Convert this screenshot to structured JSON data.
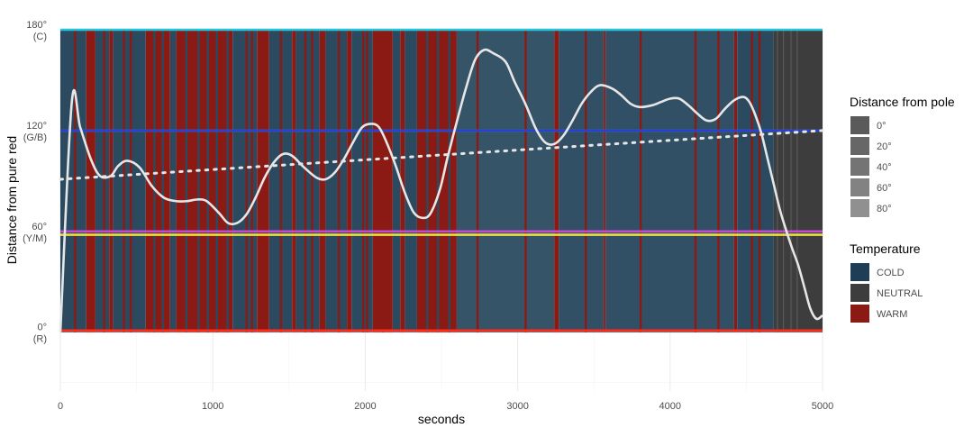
{
  "chart_data": {
    "type": "area",
    "xlabel": "seconds",
    "ylabel": "Distance from pure red",
    "xlim": [
      0,
      5000
    ],
    "ylim": [
      -35,
      180
    ],
    "grid": true,
    "x_ticks": [
      {
        "value": 0,
        "label": "0"
      },
      {
        "value": 1000,
        "label": "1000"
      },
      {
        "value": 2000,
        "label": "2000"
      },
      {
        "value": 3000,
        "label": "3000"
      },
      {
        "value": 4000,
        "label": "4000"
      },
      {
        "value": 5000,
        "label": "5000"
      }
    ],
    "y_ticks": [
      {
        "value": 0,
        "label": "0°",
        "sublabel": "(R)"
      },
      {
        "value": 60,
        "label": "60°",
        "sublabel": "(Y/M)"
      },
      {
        "value": 120,
        "label": "120°",
        "sublabel": "(G/B)"
      },
      {
        "value": 180,
        "label": "180°",
        "sublabel": "(C)"
      }
    ],
    "reference_lines": [
      {
        "y": 180,
        "color": "#26c6da"
      },
      {
        "y": 120,
        "color": "#2ecc40"
      },
      {
        "y": 120,
        "color": "#2b3fd6"
      },
      {
        "y": 60,
        "color": "#c04cd0"
      },
      {
        "y": 58,
        "color": "#e8e040"
      },
      {
        "y": 1,
        "color": "#ff2a1a"
      }
    ],
    "temperature_segments": [
      {
        "start": 0,
        "end": 170,
        "temp": "COLD"
      },
      {
        "start": 170,
        "end": 230,
        "temp": "WARM"
      },
      {
        "start": 230,
        "end": 320,
        "temp": "COLD"
      },
      {
        "start": 320,
        "end": 345,
        "temp": "WARM"
      },
      {
        "start": 345,
        "end": 560,
        "temp": "COLD"
      },
      {
        "start": 560,
        "end": 720,
        "temp": "WARM"
      },
      {
        "start": 720,
        "end": 760,
        "temp": "COLD"
      },
      {
        "start": 760,
        "end": 1130,
        "temp": "WARM"
      },
      {
        "start": 1130,
        "end": 1290,
        "temp": "COLD"
      },
      {
        "start": 1290,
        "end": 1370,
        "temp": "WARM"
      },
      {
        "start": 1370,
        "end": 1520,
        "temp": "COLD"
      },
      {
        "start": 1520,
        "end": 1545,
        "temp": "WARM"
      },
      {
        "start": 1545,
        "end": 1700,
        "temp": "COLD"
      },
      {
        "start": 1700,
        "end": 1740,
        "temp": "WARM"
      },
      {
        "start": 1740,
        "end": 1880,
        "temp": "COLD"
      },
      {
        "start": 1880,
        "end": 1910,
        "temp": "WARM"
      },
      {
        "start": 1910,
        "end": 2050,
        "temp": "COLD"
      },
      {
        "start": 2050,
        "end": 2180,
        "temp": "WARM"
      },
      {
        "start": 2180,
        "end": 2230,
        "temp": "COLD"
      },
      {
        "start": 2230,
        "end": 2260,
        "temp": "WARM"
      },
      {
        "start": 2260,
        "end": 2340,
        "temp": "COLD"
      },
      {
        "start": 2340,
        "end": 2600,
        "temp": "WARM"
      },
      {
        "start": 2600,
        "end": 3240,
        "temp": "COLD"
      },
      {
        "start": 3240,
        "end": 3270,
        "temp": "WARM"
      },
      {
        "start": 3270,
        "end": 3560,
        "temp": "COLD"
      },
      {
        "start": 3560,
        "end": 3580,
        "temp": "WARM"
      },
      {
        "start": 3580,
        "end": 4420,
        "temp": "COLD"
      },
      {
        "start": 4420,
        "end": 4440,
        "temp": "WARM"
      },
      {
        "start": 4440,
        "end": 4680,
        "temp": "COLD"
      },
      {
        "start": 4680,
        "end": 5000,
        "temp": "NEUTRAL"
      }
    ],
    "warm_stripes": [
      90,
      280,
      410,
      455,
      1215,
      1250,
      1440,
      1600,
      1645,
      1820,
      1980,
      2005,
      2110,
      2730,
      3045,
      3440,
      3800,
      4160,
      4310,
      4530,
      4580
    ],
    "cold_stripes": [
      610,
      665,
      820,
      900,
      960,
      1020,
      1090,
      2400,
      2470,
      2545
    ],
    "series": [
      {
        "type": "smooth",
        "color": "#e6e6e6",
        "x": [
          0,
          75,
          130,
          200,
          260,
          330,
          380,
          440,
          520,
          600,
          680,
          760,
          830,
          900,
          960,
          1040,
          1100,
          1160,
          1220,
          1280,
          1340,
          1400,
          1460,
          1520,
          1600,
          1680,
          1740,
          1800,
          1860,
          1920,
          1980,
          2040,
          2090,
          2140,
          2200,
          2260,
          2320,
          2380,
          2430,
          2490,
          2540,
          2600,
          2660,
          2720,
          2780,
          2840,
          2920,
          2980,
          3050,
          3120,
          3180,
          3240,
          3300,
          3360,
          3420,
          3480,
          3540,
          3620,
          3680,
          3740,
          3800,
          3880,
          3940,
          4000,
          4060,
          4120,
          4180,
          4240,
          4300,
          4360,
          4420,
          4480,
          4520,
          4560,
          4600,
          4640,
          4680,
          4720,
          4760,
          4800,
          4840,
          4880,
          4920,
          4960,
          5000
        ],
        "y": [
          0,
          137,
          122,
          103,
          93,
          93,
          99,
          102,
          98,
          87,
          80,
          78,
          78,
          79,
          78,
          71,
          65,
          65,
          70,
          80,
          92,
          101,
          106,
          105,
          98,
          92,
          91,
          95,
          103,
          113,
          122,
          124,
          122,
          113,
          99,
          83,
          71,
          68,
          71,
          85,
          104,
          125,
          145,
          162,
          168,
          166,
          161,
          149,
          136,
          121,
          113,
          112,
          117,
          126,
          136,
          143,
          147,
          145,
          141,
          136,
          134,
          135,
          137,
          139,
          139,
          135,
          130,
          126,
          127,
          133,
          138,
          140,
          137,
          129,
          118,
          103,
          88,
          73,
          61,
          50,
          40,
          27,
          14,
          8,
          10
        ]
      },
      {
        "type": "trend",
        "dashed": true,
        "color": "#e6e6e6",
        "x": [
          0,
          5000
        ],
        "y": [
          91,
          120
        ]
      }
    ],
    "legend": {
      "placement": "right",
      "groups": [
        {
          "title": "Distance from pole",
          "items": [
            {
              "label": "0°",
              "color": "#5a5a5a"
            },
            {
              "label": "20°",
              "color": "#676767"
            },
            {
              "label": "40°",
              "color": "#747474"
            },
            {
              "label": "60°",
              "color": "#828282"
            },
            {
              "label": "80°",
              "color": "#909090"
            }
          ]
        },
        {
          "title": "Temperature",
          "items": [
            {
              "label": "COLD",
              "color": "#1f3d55"
            },
            {
              "label": "NEUTRAL",
              "color": "#3d3d3d"
            },
            {
              "label": "WARM",
              "color": "#8b1a14"
            }
          ]
        }
      ]
    },
    "colors": {
      "cold": "#2b4a60",
      "cold_light": "#3f5c70",
      "warm": "#8b1a14",
      "neutral": "#3d3d3d",
      "grid": "#ebebeb",
      "tick_text": "#4d4d4d",
      "title_text": "#000000"
    }
  }
}
